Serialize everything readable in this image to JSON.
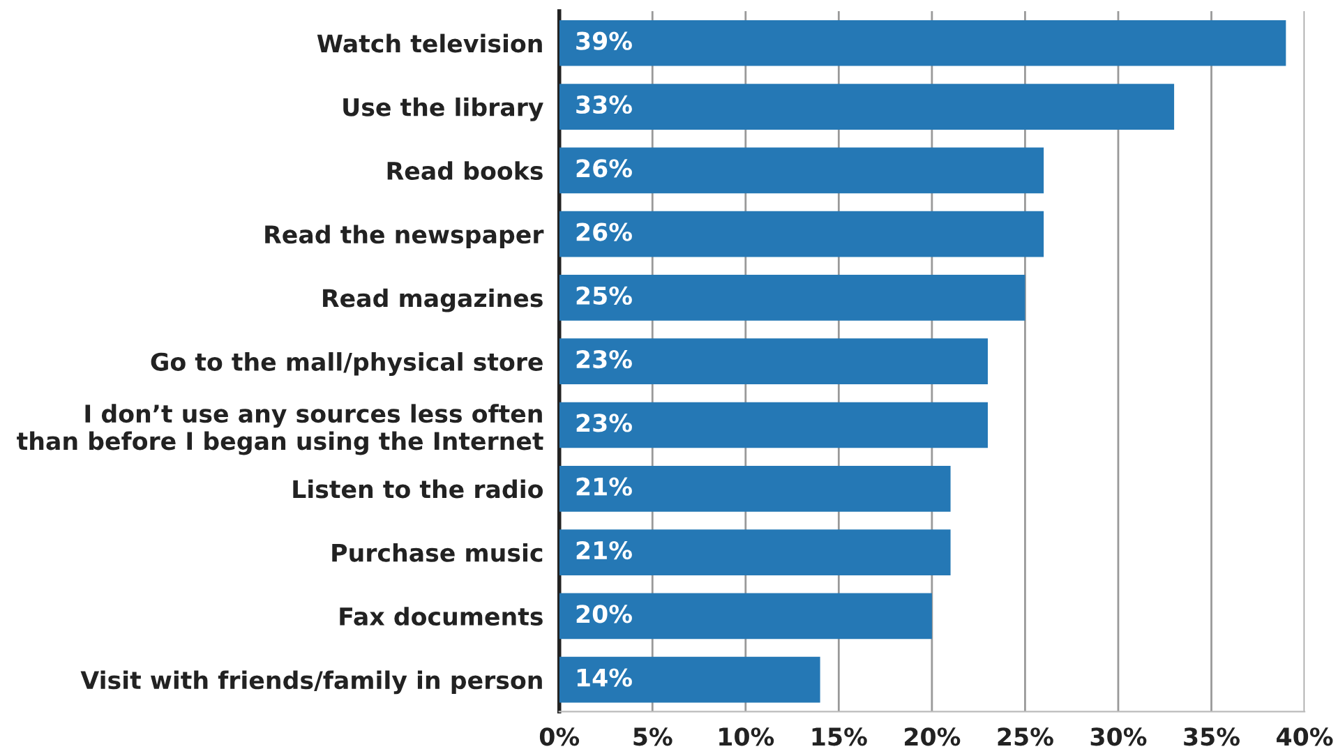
{
  "chart_data": {
    "type": "bar",
    "orientation": "horizontal",
    "categories": [
      "Watch television",
      "Use the library",
      "Read books",
      "Read the newspaper",
      "Read magazines",
      "Go to the mall/physical store",
      "I don’t use any sources less often\nthan before I began using the Internet",
      "Listen to the radio",
      "Purchase music",
      "Fax documents",
      "Visit with friends/family in person"
    ],
    "values": [
      39,
      33,
      26,
      26,
      25,
      23,
      23,
      21,
      21,
      20,
      14
    ],
    "value_labels": [
      "39%",
      "33%",
      "26%",
      "26%",
      "25%",
      "23%",
      "23%",
      "21%",
      "21%",
      "20%",
      "14%"
    ],
    "color": "#2578b5",
    "xlim": [
      0,
      40
    ],
    "xticks": [
      {
        "value": 0,
        "label": "0%"
      },
      {
        "value": 5,
        "label": "5%"
      },
      {
        "value": 10,
        "label": "10%"
      },
      {
        "value": 15,
        "label": "15%"
      },
      {
        "value": 20,
        "label": "20%"
      },
      {
        "value": 25,
        "label": "25%"
      },
      {
        "value": 30,
        "label": "30%"
      },
      {
        "value": 35,
        "label": "35%"
      },
      {
        "value": 40,
        "label": "40%"
      }
    ],
    "grid": "x"
  }
}
